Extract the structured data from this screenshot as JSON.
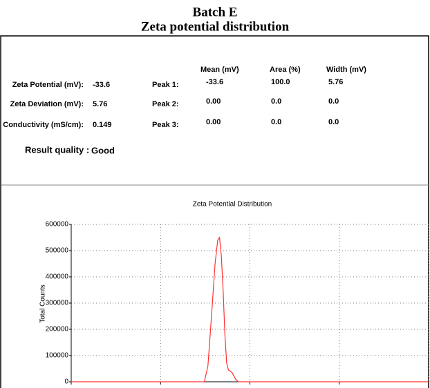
{
  "header": {
    "title": "Batch E",
    "subtitle": "Zeta potential distribution"
  },
  "results": {
    "columns": [
      "Mean (mV)",
      "Area (%)",
      "Width (mV)"
    ],
    "summary": [
      {
        "label": "Zeta Potential (mV):",
        "value": "-33.6"
      },
      {
        "label": "Zeta Deviation (mV):",
        "value": "5.76"
      },
      {
        "label": "Conductivity (mS/cm):",
        "value": "0.149"
      }
    ],
    "peaks": [
      {
        "label": "Peak 1:",
        "mean": "-33.6",
        "area": "100.0",
        "width": "5.76"
      },
      {
        "label": "Peak 2:",
        "mean": "0.00",
        "area": "0.0",
        "width": "0.0"
      },
      {
        "label": "Peak 3:",
        "mean": "0.00",
        "area": "0.0",
        "width": "0.0"
      }
    ],
    "quality_label": "Result quality :",
    "quality": "Good"
  },
  "chart_data": {
    "type": "line",
    "title": "Zeta Potential Distribution",
    "ylabel": "Total Counts",
    "x": [
      -200,
      -55,
      -51,
      -47,
      -43,
      -39,
      -36,
      -34,
      -32,
      -30,
      -28,
      -26,
      -24,
      -20,
      -16,
      -13,
      200
    ],
    "values": [
      0,
      0,
      0,
      60000,
      250000,
      450000,
      540000,
      550000,
      480000,
      350000,
      180000,
      70000,
      45000,
      35000,
      10000,
      0,
      0
    ],
    "color": "#ff3030",
    "xlim": [
      -200,
      200
    ],
    "xticks": [
      -200,
      -100,
      0,
      100,
      200
    ],
    "ylim": [
      0,
      600000
    ],
    "yticks": [
      0,
      100000,
      200000,
      300000,
      400000,
      500000,
      600000
    ],
    "grid": true
  }
}
